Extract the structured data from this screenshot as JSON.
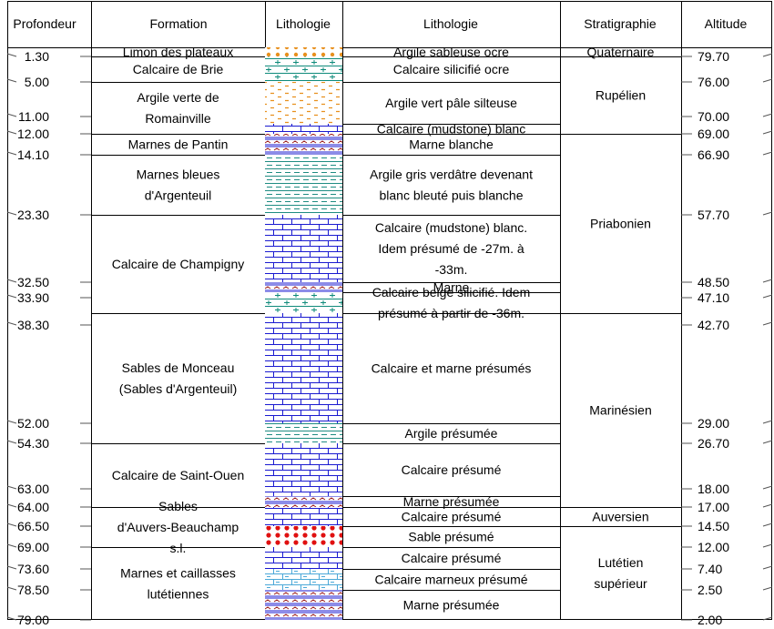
{
  "headers": {
    "profondeur": "Profondeur",
    "formation": "Formation",
    "lithologie_graphic": "Lithologie",
    "lithologie_text": "Lithologie",
    "stratigraphie": "Stratigraphie",
    "altitude": "Altitude"
  },
  "depths": [
    "1.30",
    "5.00",
    "11.00",
    "12.00",
    "14.10",
    "23.30",
    "32.50",
    "33.90",
    "38.30",
    "52.00",
    "54.30",
    "63.00",
    "64.00",
    "66.50",
    "69.00",
    "73.60",
    "78.50",
    "79.00"
  ],
  "altitudes": [
    "79.70",
    "76.00",
    "70.00",
    "69.00",
    "66.90",
    "57.70",
    "48.50",
    "47.10",
    "42.70",
    "29.00",
    "26.70",
    "18.00",
    "17.00",
    "14.50",
    "12.00",
    "7.40",
    "2.50",
    "2.00"
  ],
  "formations": [
    {
      "lines": [
        "Limon des plateaux"
      ]
    },
    {
      "lines": [
        "Calcaire de Brie"
      ]
    },
    {
      "lines": [
        "Argile verte de",
        "Romainville"
      ]
    },
    {
      "lines": [
        "Marnes de Pantin"
      ]
    },
    {
      "lines": [
        "Marnes bleues",
        "d'Argenteuil"
      ]
    },
    {
      "lines": [
        "Calcaire de Champigny"
      ]
    },
    {
      "lines": [
        "Sables de Monceau",
        "(Sables d'Argenteuil)"
      ]
    },
    {
      "lines": [
        "Calcaire de Saint-Ouen"
      ]
    },
    {
      "lines": [
        "Sables",
        "d'Auvers-Beauchamp",
        "s.l."
      ]
    },
    {
      "lines": [
        "Marnes et caillasses",
        "lutétiennes"
      ]
    }
  ],
  "lithologies": [
    {
      "lines": [
        "Argile sableuse ocre"
      ],
      "pattern": "dots-orange"
    },
    {
      "lines": [
        "Calcaire silicifié ocre"
      ],
      "pattern": "plus-teal"
    },
    {
      "lines": [
        "Argile vert pâle silteuse"
      ],
      "pattern": "dash-orange"
    },
    {
      "lines": [
        "Calcaire (mudstone) blanc"
      ],
      "pattern": "brick"
    },
    {
      "lines": [
        "Marne blanche"
      ],
      "pattern": "marl"
    },
    {
      "lines": [
        "Argile gris verdâtre devenant",
        "blanc bleuté puis blanche"
      ],
      "pattern": "dash-teal"
    },
    {
      "lines": [
        "Calcaire (mudstone) blanc.",
        "Idem présumé de -27m. à",
        "-33m."
      ],
      "pattern": "brick"
    },
    {
      "lines": [
        "Marne"
      ],
      "pattern": "marl"
    },
    {
      "lines": [
        "Calcaire beige silicifié. Idem",
        "présumé à partir de -36m."
      ],
      "pattern": "plus-teal"
    },
    {
      "lines": [
        "Calcaire et marne présumés"
      ],
      "pattern": "brick"
    },
    {
      "lines": [
        "Argile présumée"
      ],
      "pattern": "dash-teal"
    },
    {
      "lines": [
        "Calcaire présumé"
      ],
      "pattern": "brick"
    },
    {
      "lines": [
        "Marne présumée"
      ],
      "pattern": "marl"
    },
    {
      "lines": [
        "Calcaire présumé"
      ],
      "pattern": "brick"
    },
    {
      "lines": [
        "Sable présumé"
      ],
      "pattern": "dots-red"
    },
    {
      "lines": [
        "Calcaire présumé"
      ],
      "pattern": "brick"
    },
    {
      "lines": [
        "Calcaire marneux présumé"
      ],
      "pattern": "brick-marl"
    },
    {
      "lines": [
        "Marne présumée"
      ],
      "pattern": "marl"
    }
  ],
  "stratigraphy": [
    {
      "lines": [
        "Quaternaire"
      ]
    },
    {
      "lines": [
        "Rupélien"
      ]
    },
    {
      "lines": [
        "Priabonien"
      ]
    },
    {
      "lines": [
        "Marinésien"
      ]
    },
    {
      "lines": [
        "Auversien"
      ]
    },
    {
      "lines": [
        "Lutétien",
        "supérieur"
      ]
    }
  ],
  "colors": {
    "brick": "#1a1ad0",
    "teal": "#0e8a7a",
    "orange": "#e8901e",
    "marl_red": "#9a1a1a",
    "marl_blue": "#1a1ad0",
    "sand_red": "#e01010",
    "clay_teal": "#1f8c82",
    "brick_marl": "#4aa8d8",
    "frame": "#000000",
    "divider": "#555555"
  }
}
